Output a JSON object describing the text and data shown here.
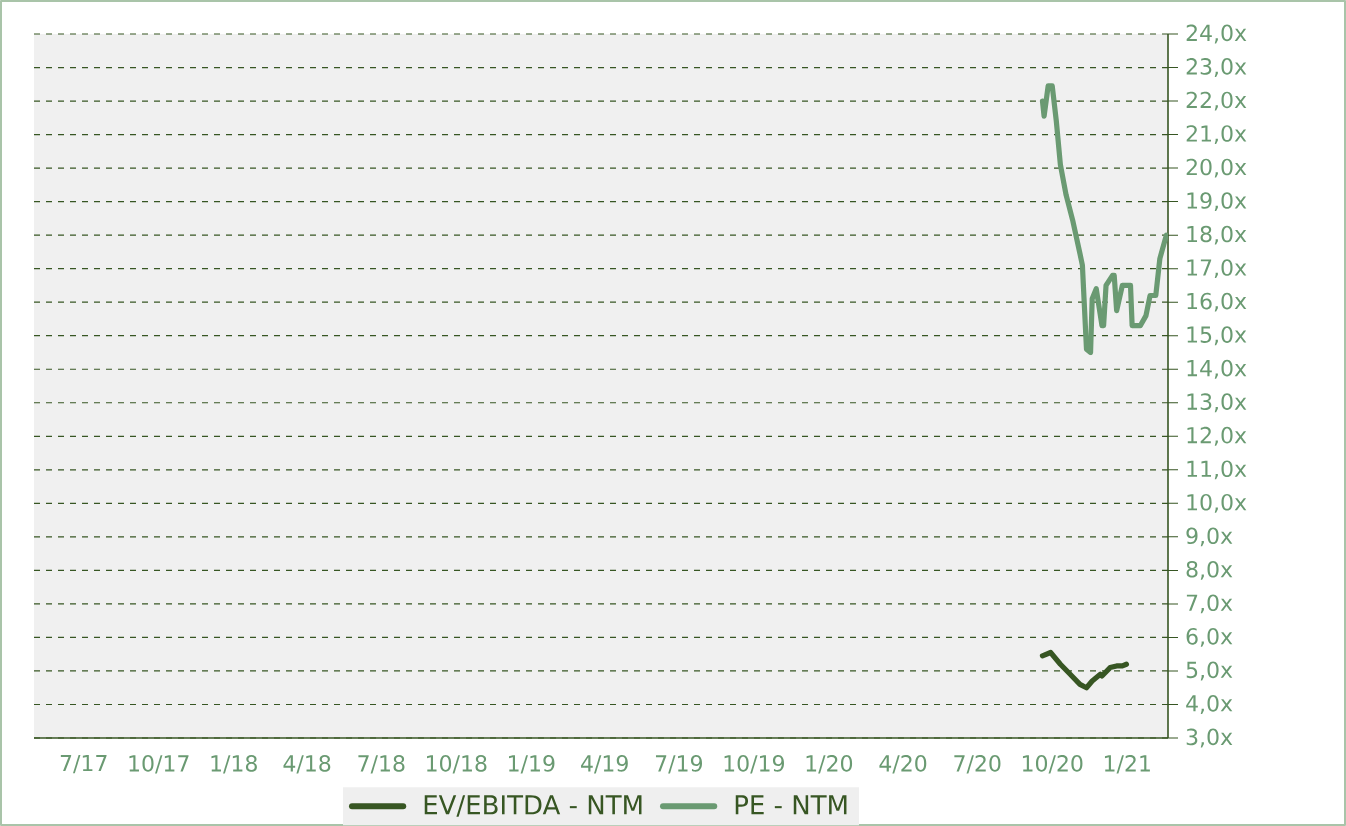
{
  "chart_data": {
    "type": "line",
    "xlim": [
      "2017-05-01",
      "2021-02-20"
    ],
    "ylim": [
      3,
      24
    ],
    "xticks": [
      {
        "value": "2017-07-01",
        "label": "7/17"
      },
      {
        "value": "2017-10-01",
        "label": "10/17"
      },
      {
        "value": "2018-01-01",
        "label": "1/18"
      },
      {
        "value": "2018-04-01",
        "label": "4/18"
      },
      {
        "value": "2018-07-01",
        "label": "7/18"
      },
      {
        "value": "2018-10-01",
        "label": "10/18"
      },
      {
        "value": "2019-01-01",
        "label": "1/19"
      },
      {
        "value": "2019-04-01",
        "label": "4/19"
      },
      {
        "value": "2019-07-01",
        "label": "7/19"
      },
      {
        "value": "2019-10-01",
        "label": "10/19"
      },
      {
        "value": "2020-01-01",
        "label": "1/20"
      },
      {
        "value": "2020-04-01",
        "label": "4/20"
      },
      {
        "value": "2020-07-01",
        "label": "7/20"
      },
      {
        "value": "2020-10-01",
        "label": "10/20"
      },
      {
        "value": "2021-01-01",
        "label": "1/21"
      }
    ],
    "yticks": [
      {
        "value": 3,
        "label": "3,0x"
      },
      {
        "value": 4,
        "label": "4,0x"
      },
      {
        "value": 5,
        "label": "5,0x"
      },
      {
        "value": 6,
        "label": "6,0x"
      },
      {
        "value": 7,
        "label": "7,0x"
      },
      {
        "value": 8,
        "label": "8,0x"
      },
      {
        "value": 9,
        "label": "9,0x"
      },
      {
        "value": 10,
        "label": "10,0x"
      },
      {
        "value": 11,
        "label": "11,0x"
      },
      {
        "value": 12,
        "label": "12,0x"
      },
      {
        "value": 13,
        "label": "13,0x"
      },
      {
        "value": 14,
        "label": "14,0x"
      },
      {
        "value": 15,
        "label": "15,0x"
      },
      {
        "value": 16,
        "label": "16,0x"
      },
      {
        "value": 17,
        "label": "17,0x"
      },
      {
        "value": 18,
        "label": "18,0x"
      },
      {
        "value": 19,
        "label": "19,0x"
      },
      {
        "value": 20,
        "label": "20,0x"
      },
      {
        "value": 21,
        "label": "21,0x"
      },
      {
        "value": 22,
        "label": "22,0x"
      },
      {
        "value": 23,
        "label": "23,0x"
      },
      {
        "value": 24,
        "label": "24,0x"
      }
    ],
    "grid": "y",
    "legend": "bottom",
    "marker": "none",
    "line_style": "solid",
    "series": [
      {
        "name": "EV/EBITDA - NTM",
        "color": "#375623",
        "x": [
          "2020-09-19",
          "2020-09-29",
          "2020-10-11",
          "2020-10-23",
          "2020-11-04",
          "2020-11-12",
          "2020-11-19",
          "2020-11-29",
          "2020-12-01",
          "2020-12-11",
          "2020-12-19",
          "2020-12-26",
          "2020-12-31"
        ],
        "values": [
          5.45,
          5.55,
          5.2,
          4.9,
          4.6,
          4.5,
          4.7,
          4.9,
          4.85,
          5.1,
          5.15,
          5.15,
          5.2
        ]
      },
      {
        "name": "PE - NTM",
        "color": "#6a9a72",
        "x": [
          "2020-09-19",
          "2020-09-21",
          "2020-09-26",
          "2020-10-01",
          "2020-10-06",
          "2020-10-11",
          "2020-10-18",
          "2020-10-26",
          "2020-11-04",
          "2020-11-07",
          "2020-11-12",
          "2020-11-17",
          "2020-11-19",
          "2020-11-24",
          "2020-12-01",
          "2020-12-03",
          "2020-12-06",
          "2020-12-14",
          "2020-12-16",
          "2020-12-19",
          "2020-12-26",
          "2021-01-05",
          "2021-01-07",
          "2021-01-17",
          "2021-01-24",
          "2021-01-29",
          "2021-02-05",
          "2021-02-10",
          "2021-02-18"
        ],
        "values": [
          22.0,
          21.55,
          22.45,
          22.45,
          21.4,
          20.1,
          19.2,
          18.45,
          17.45,
          17.1,
          14.6,
          14.5,
          16.1,
          16.4,
          15.3,
          15.3,
          16.5,
          16.8,
          16.8,
          15.75,
          16.5,
          16.5,
          15.3,
          15.3,
          15.6,
          16.2,
          16.2,
          17.3,
          18.0
        ]
      }
    ]
  }
}
